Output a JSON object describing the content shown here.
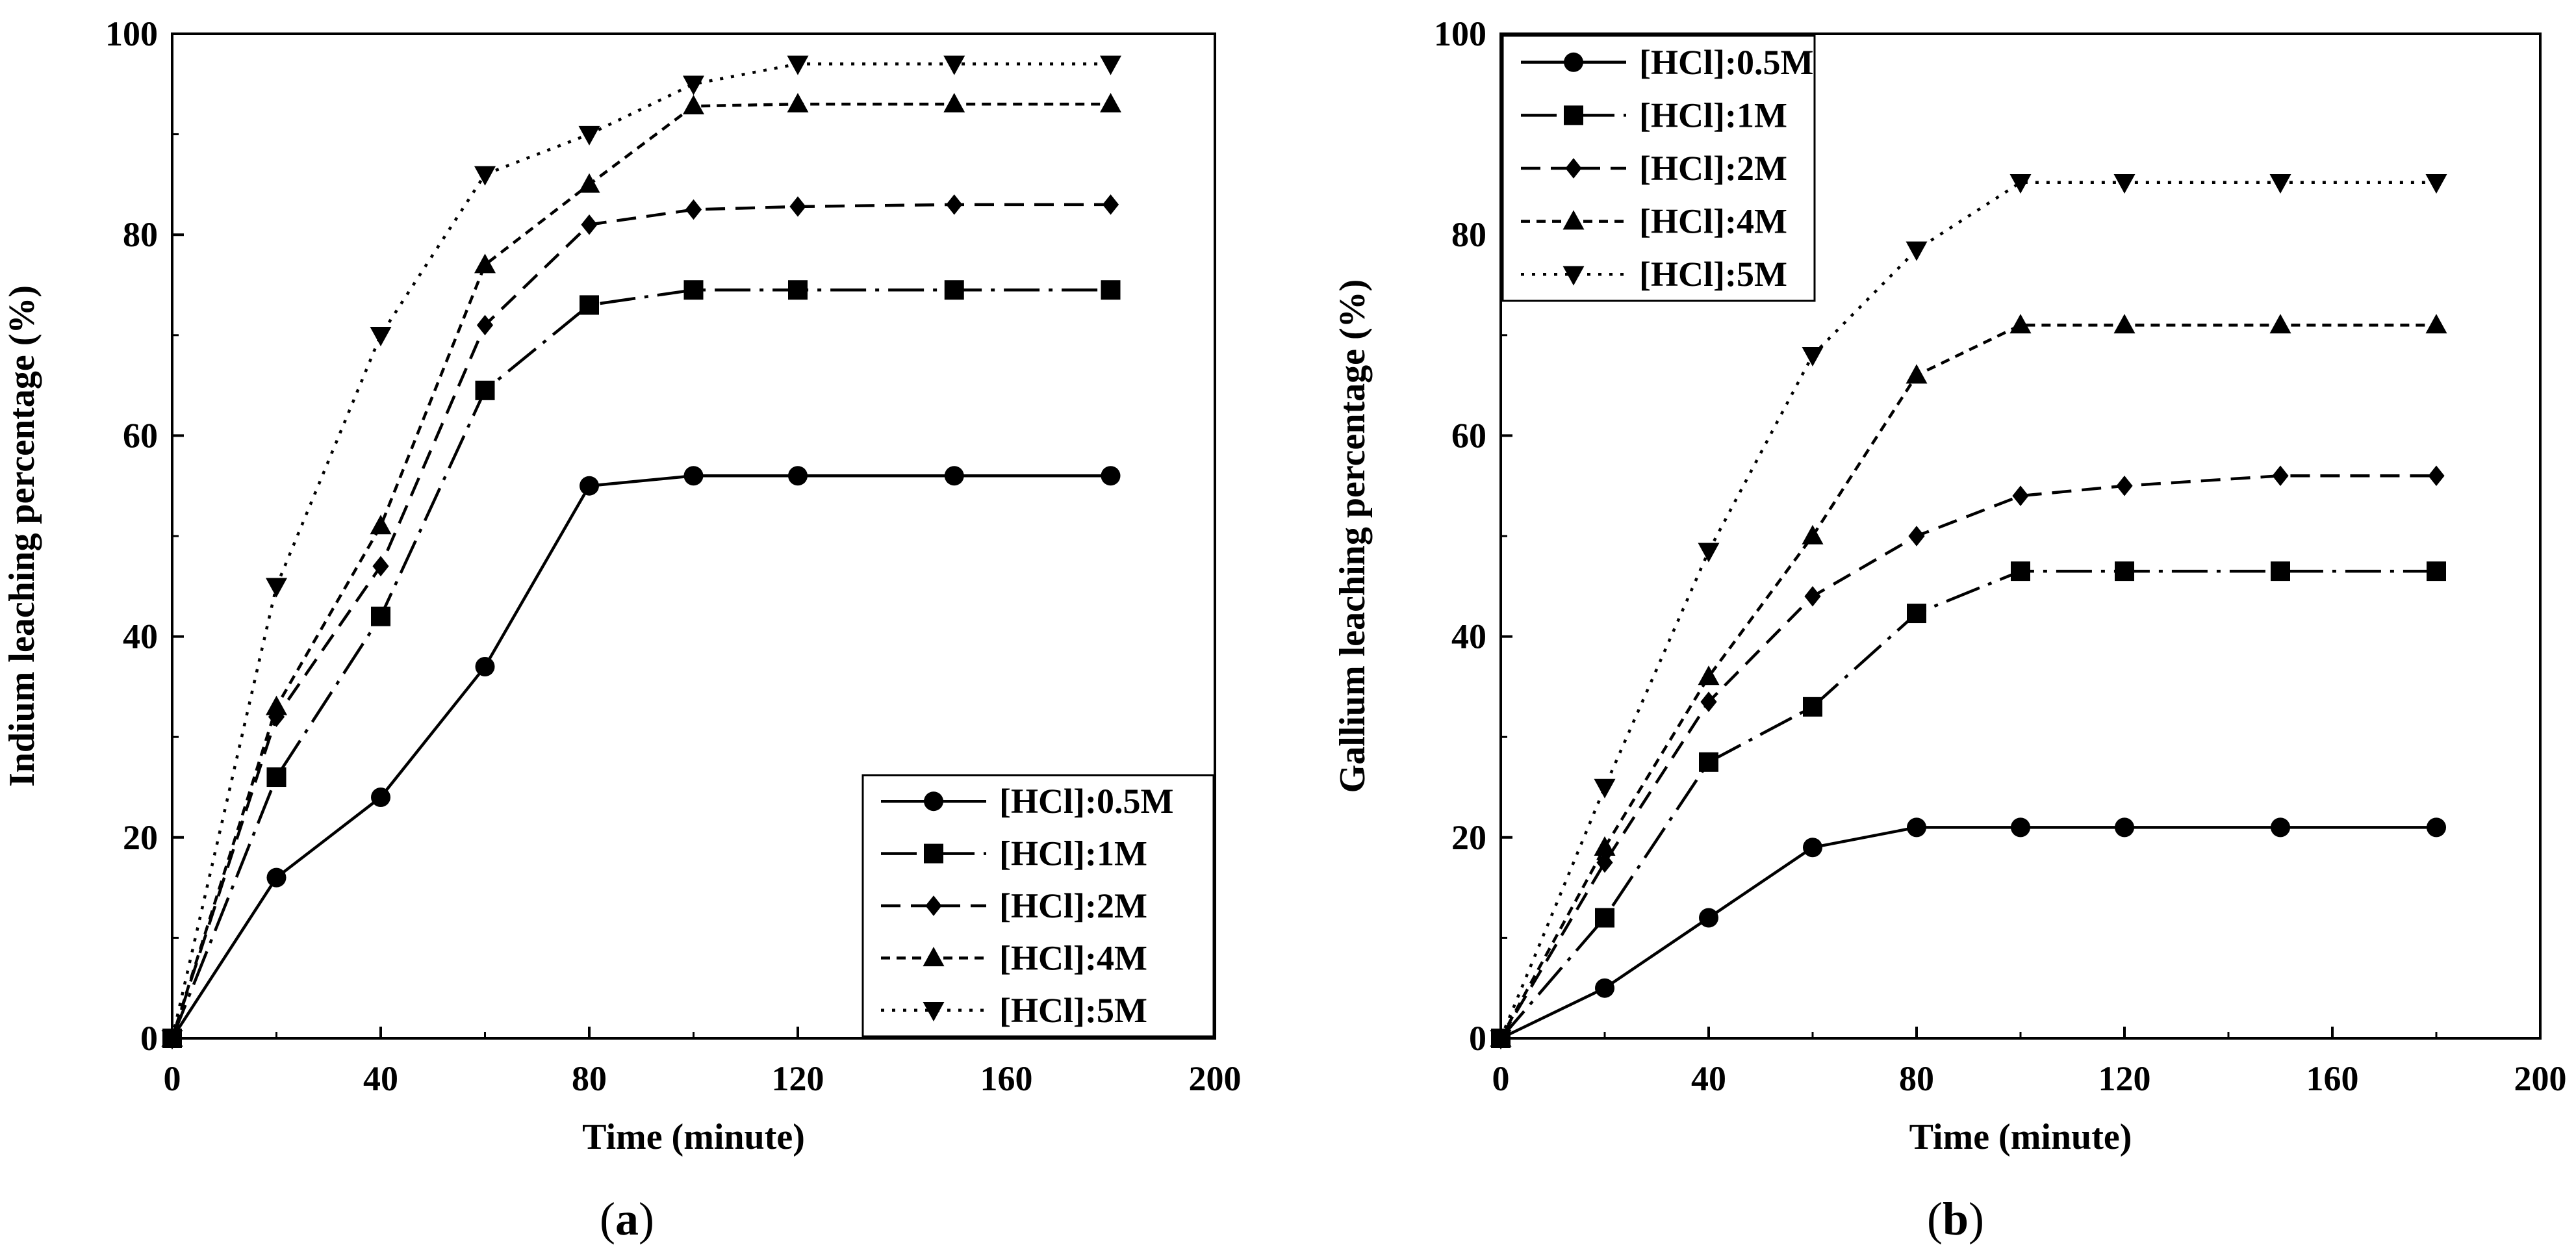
{
  "chart_data": [
    {
      "type": "line",
      "panel_label": "a",
      "xlabel": "Time (minute)",
      "ylabel": "Indium leaching percentage (%)",
      "xlim": [
        0,
        200
      ],
      "ylim": [
        0,
        100
      ],
      "xticks": [
        0,
        40,
        80,
        120,
        160,
        200
      ],
      "yticks": [
        0,
        20,
        40,
        60,
        80,
        100
      ],
      "legend_position": "bottom-right",
      "series": [
        {
          "name": "[HCl]:0.5M",
          "marker": "circle",
          "dash": "solid",
          "x": [
            0,
            20,
            40,
            60,
            80,
            100,
            120,
            150,
            180
          ],
          "y": [
            0,
            16,
            24,
            37,
            55,
            56,
            56,
            56,
            56
          ]
        },
        {
          "name": "[HCl]:1M",
          "marker": "square",
          "dash": "longdash",
          "x": [
            0,
            20,
            40,
            60,
            80,
            100,
            120,
            150,
            180
          ],
          "y": [
            0,
            26,
            42,
            64.5,
            73,
            74.5,
            74.5,
            74.5,
            74.5
          ]
        },
        {
          "name": "[HCl]:2M",
          "marker": "diamond",
          "dash": "dash",
          "x": [
            0,
            20,
            40,
            60,
            80,
            100,
            120,
            150,
            180
          ],
          "y": [
            0,
            32,
            47,
            71,
            81,
            82.5,
            82.8,
            83,
            83
          ]
        },
        {
          "name": "[HCl]:4M",
          "marker": "triangle-up",
          "dash": "shortdash",
          "x": [
            0,
            20,
            40,
            60,
            80,
            100,
            120,
            150,
            180
          ],
          "y": [
            0,
            33,
            51,
            77,
            85,
            92.8,
            93,
            93,
            93
          ]
        },
        {
          "name": "[HCl]:5M",
          "marker": "triangle-down",
          "dash": "dot",
          "x": [
            0,
            20,
            40,
            60,
            80,
            100,
            120,
            150,
            180
          ],
          "y": [
            0,
            45,
            70,
            86,
            90,
            95,
            97,
            97,
            97
          ]
        }
      ]
    },
    {
      "type": "line",
      "panel_label": "b",
      "xlabel": "Time (minute)",
      "ylabel": "Gallium leaching percentage (%)",
      "xlim": [
        0,
        200
      ],
      "ylim": [
        0,
        100
      ],
      "xticks": [
        0,
        40,
        80,
        120,
        160,
        200
      ],
      "yticks": [
        0,
        20,
        40,
        60,
        80,
        100
      ],
      "legend_position": "top-left",
      "series": [
        {
          "name": "[HCl]:0.5M",
          "marker": "circle",
          "dash": "solid",
          "x": [
            0,
            20,
            40,
            60,
            80,
            100,
            120,
            150,
            180
          ],
          "y": [
            0,
            5,
            12,
            19,
            21,
            21,
            21,
            21,
            21
          ]
        },
        {
          "name": "[HCl]:1M",
          "marker": "square",
          "dash": "longdash",
          "x": [
            0,
            20,
            40,
            60,
            80,
            100,
            120,
            150,
            180
          ],
          "y": [
            0,
            12,
            27.5,
            33,
            42.3,
            46.5,
            46.5,
            46.5,
            46.5
          ]
        },
        {
          "name": "[HCl]:2M",
          "marker": "diamond",
          "dash": "dash",
          "x": [
            0,
            20,
            40,
            60,
            80,
            100,
            120,
            150,
            180
          ],
          "y": [
            0,
            17.5,
            33.5,
            44,
            50,
            54,
            55,
            56,
            56
          ]
        },
        {
          "name": "[HCl]:4M",
          "marker": "triangle-up",
          "dash": "shortdash",
          "x": [
            0,
            20,
            40,
            60,
            80,
            100,
            120,
            150,
            180
          ],
          "y": [
            0,
            19,
            36,
            50,
            66,
            71,
            71,
            71,
            71
          ]
        },
        {
          "name": "[HCl]:5M",
          "marker": "triangle-down",
          "dash": "dot",
          "x": [
            0,
            20,
            40,
            60,
            80,
            100,
            120,
            150,
            180
          ],
          "y": [
            0,
            25,
            48.5,
            68,
            78.5,
            85.2,
            85.2,
            85.2,
            85.2
          ]
        }
      ]
    }
  ]
}
